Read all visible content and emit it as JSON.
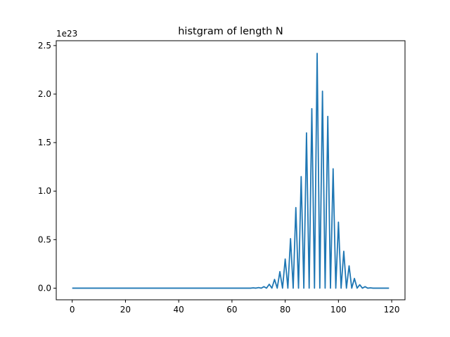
{
  "chart_data": {
    "type": "line",
    "title": "histgram of length N",
    "xlabel": "",
    "ylabel": "",
    "y_offset_label": "1e23",
    "xlim": [
      -6,
      125
    ],
    "ylim": [
      -0.12,
      2.55
    ],
    "y_scale_factor": "1e23",
    "x_ticks": [
      0,
      20,
      40,
      60,
      80,
      100,
      120
    ],
    "x_tick_labels": [
      "0",
      "20",
      "40",
      "60",
      "80",
      "100",
      "120"
    ],
    "y_ticks": [
      0.0,
      0.5,
      1.0,
      1.5,
      2.0,
      2.5
    ],
    "y_tick_labels": [
      "0.0",
      "0.5",
      "1.0",
      "1.5",
      "2.0",
      "2.5"
    ],
    "grid": false,
    "series": [
      {
        "color": "#1f77b4",
        "x": [
          0,
          1,
          2,
          3,
          4,
          5,
          6,
          7,
          8,
          9,
          10,
          11,
          12,
          13,
          14,
          15,
          16,
          17,
          18,
          19,
          20,
          21,
          22,
          23,
          24,
          25,
          26,
          27,
          28,
          29,
          30,
          31,
          32,
          33,
          34,
          35,
          36,
          37,
          38,
          39,
          40,
          41,
          42,
          43,
          44,
          45,
          46,
          47,
          48,
          49,
          50,
          51,
          52,
          53,
          54,
          55,
          56,
          57,
          58,
          59,
          60,
          61,
          62,
          63,
          64,
          65,
          66,
          67,
          68,
          69,
          70,
          71,
          72,
          73,
          74,
          75,
          76,
          77,
          78,
          79,
          80,
          81,
          82,
          83,
          84,
          85,
          86,
          87,
          88,
          89,
          90,
          91,
          92,
          93,
          94,
          95,
          96,
          97,
          98,
          99,
          100,
          101,
          102,
          103,
          104,
          105,
          106,
          107,
          108,
          109,
          110,
          111,
          112,
          113,
          114,
          115,
          116,
          117,
          118,
          119
        ],
        "y": [
          0,
          0,
          0,
          0,
          0,
          0,
          0,
          0,
          0,
          0,
          0,
          0,
          0,
          0,
          0,
          0,
          0,
          0,
          0,
          0,
          0,
          0,
          0,
          0,
          0,
          0,
          0,
          0,
          0,
          0,
          0,
          0,
          0,
          0,
          0,
          0,
          0,
          0,
          0,
          0,
          0,
          0,
          0,
          0,
          0,
          0,
          0,
          0,
          0,
          0,
          0,
          0,
          0,
          0,
          0,
          0,
          0,
          0,
          0,
          0,
          0,
          0,
          0,
          0,
          0,
          0,
          0,
          0,
          0.003,
          0,
          0.006,
          0,
          0.015,
          0,
          0.04,
          0,
          0.09,
          0,
          0.17,
          0,
          0.3,
          0,
          0.51,
          0,
          0.83,
          0,
          1.15,
          0,
          1.6,
          0,
          1.85,
          0,
          2.42,
          0,
          2.03,
          0,
          1.77,
          0,
          1.23,
          0,
          0.68,
          0,
          0.38,
          0,
          0.23,
          0,
          0.1,
          0,
          0.035,
          0,
          0.015,
          0,
          0.003,
          0,
          0,
          0,
          0,
          0,
          0,
          0
        ]
      }
    ]
  }
}
